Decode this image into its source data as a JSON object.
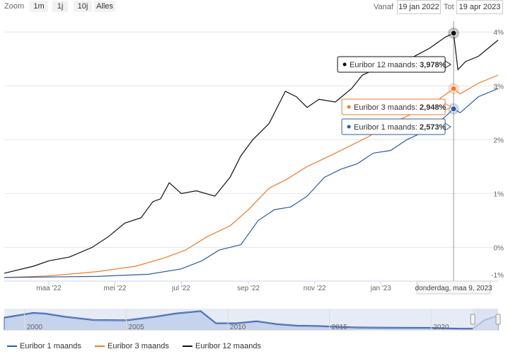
{
  "toolbar": {
    "zoom_label": "Zoom",
    "zoom_buttons": [
      "1m",
      "1j",
      "10j",
      "Alles"
    ],
    "from_label": "Vanaf",
    "from_value": "19 jan 2022",
    "to_label": "Tot",
    "to_value": "19 apr 2023"
  },
  "colors": {
    "euribor_1m": "#2b5d9e",
    "euribor_3m": "#f07a2c",
    "euribor_12m": "#111111",
    "navigator_fill": "#e6ebf5",
    "navigator_mask": "#d8dff0"
  },
  "tooltip": {
    "date": "donderdag, maa 9, 2023",
    "items": [
      {
        "name": "Euribor 12 maands",
        "value": "3,978%"
      },
      {
        "name": "Euribor 3 maands",
        "value": "2,948%"
      },
      {
        "name": "Euribor 1 maands",
        "value": "2,573%"
      }
    ]
  },
  "legend": [
    "Euribor 1 maands",
    "Euribor 3 maands",
    "Euribor 12 maands"
  ],
  "chart_data": {
    "type": "line",
    "xlim": [
      "2022-01-19",
      "2023-04-19"
    ],
    "ylim": [
      -0.6,
      4.2
    ],
    "y_ticks": [
      "4%",
      "3%",
      "2%",
      "1%",
      "0%",
      "-1%"
    ],
    "x_ticks": [
      "maa '22",
      "mei '22",
      "jul '22",
      "sep '22",
      "nov '22",
      "jan '23"
    ],
    "series": [
      {
        "name": "Euribor 12 maands",
        "x": [
          "2022-01-19",
          "2022-02-15",
          "2022-03-01",
          "2022-03-20",
          "2022-04-10",
          "2022-04-25",
          "2022-05-10",
          "2022-05-25",
          "2022-06-05",
          "2022-06-12",
          "2022-06-20",
          "2022-07-01",
          "2022-07-15",
          "2022-08-01",
          "2022-08-15",
          "2022-08-25",
          "2022-09-05",
          "2022-09-20",
          "2022-10-05",
          "2022-10-15",
          "2022-10-25",
          "2022-11-05",
          "2022-11-20",
          "2022-12-05",
          "2022-12-15",
          "2023-01-01",
          "2023-01-15",
          "2023-02-01",
          "2023-02-15",
          "2023-03-01",
          "2023-03-09",
          "2023-03-13",
          "2023-03-20",
          "2023-04-01",
          "2023-04-10",
          "2023-04-19"
        ],
        "values": [
          -0.48,
          -0.35,
          -0.25,
          -0.18,
          0.0,
          0.2,
          0.45,
          0.55,
          0.85,
          0.9,
          1.2,
          1.0,
          1.05,
          0.95,
          1.3,
          1.7,
          2.0,
          2.3,
          2.9,
          2.8,
          2.6,
          2.75,
          2.7,
          2.95,
          3.2,
          3.35,
          3.4,
          3.55,
          3.7,
          3.9,
          3.978,
          3.3,
          3.45,
          3.55,
          3.7,
          3.85
        ]
      },
      {
        "name": "Euribor 3 maands",
        "x": [
          "2022-01-19",
          "2022-03-01",
          "2022-04-15",
          "2022-05-20",
          "2022-06-15",
          "2022-07-05",
          "2022-07-25",
          "2022-08-15",
          "2022-09-01",
          "2022-09-20",
          "2022-10-05",
          "2022-10-25",
          "2022-11-15",
          "2022-12-05",
          "2022-12-20",
          "2023-01-10",
          "2023-02-01",
          "2023-02-20",
          "2023-03-09",
          "2023-03-15",
          "2023-04-01",
          "2023-04-19"
        ],
        "values": [
          -0.56,
          -0.53,
          -0.45,
          -0.35,
          -0.2,
          -0.05,
          0.2,
          0.4,
          0.7,
          1.1,
          1.25,
          1.5,
          1.7,
          1.9,
          2.05,
          2.3,
          2.5,
          2.7,
          2.948,
          2.85,
          3.05,
          3.2
        ]
      },
      {
        "name": "Euribor 1 maands",
        "x": [
          "2022-01-19",
          "2022-03-01",
          "2022-04-15",
          "2022-06-01",
          "2022-07-01",
          "2022-07-20",
          "2022-08-05",
          "2022-08-25",
          "2022-09-10",
          "2022-09-25",
          "2022-10-10",
          "2022-10-25",
          "2022-11-10",
          "2022-11-25",
          "2022-12-10",
          "2022-12-25",
          "2023-01-10",
          "2023-01-25",
          "2023-02-10",
          "2023-02-25",
          "2023-03-09",
          "2023-03-15",
          "2023-04-01",
          "2023-04-19"
        ],
        "values": [
          -0.56,
          -0.55,
          -0.54,
          -0.5,
          -0.4,
          -0.25,
          -0.05,
          0.05,
          0.5,
          0.7,
          0.75,
          0.95,
          1.3,
          1.45,
          1.55,
          1.75,
          1.8,
          2.0,
          2.15,
          2.35,
          2.573,
          2.5,
          2.8,
          2.95
        ]
      }
    ],
    "navigator": {
      "x_ticks": [
        "2000",
        "2005",
        "2010",
        "2015",
        "2020"
      ]
    }
  }
}
